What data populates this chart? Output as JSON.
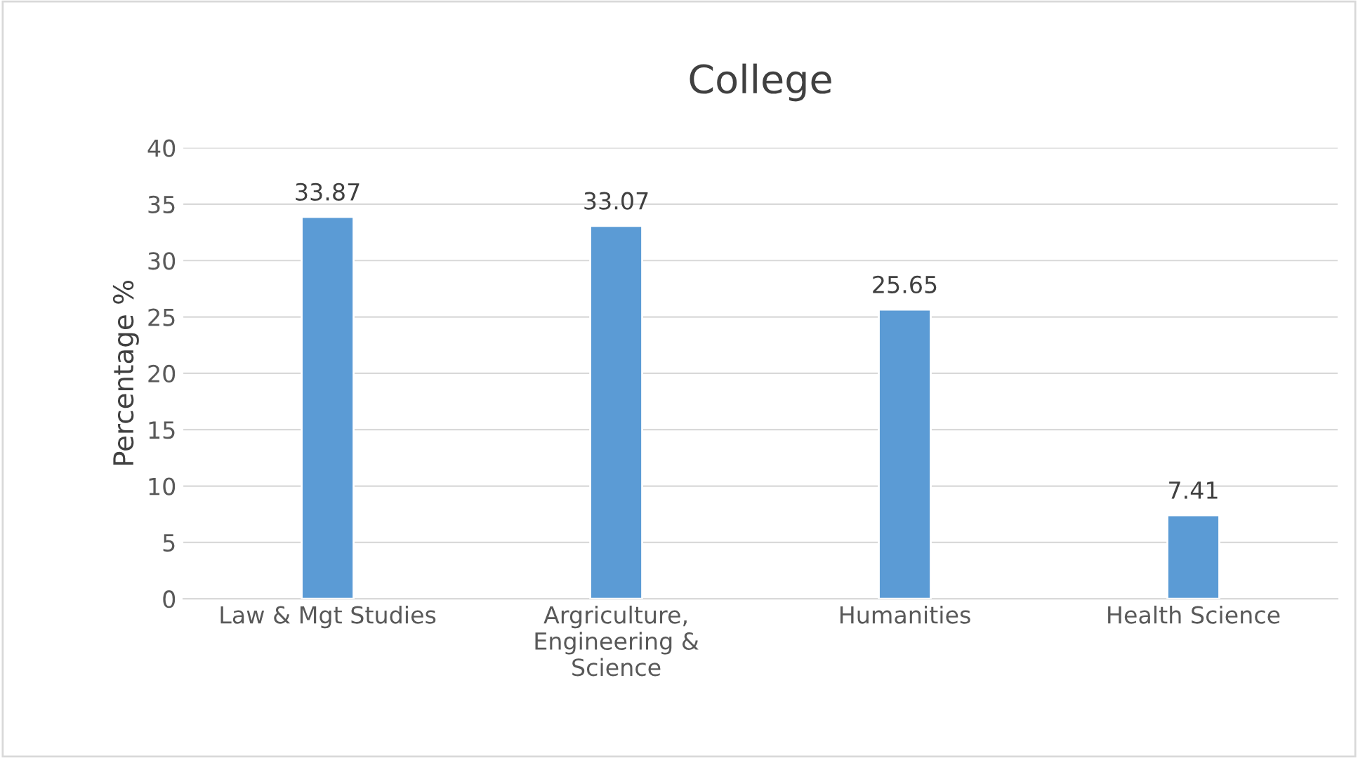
{
  "chart_data": {
    "type": "bar",
    "title": "College",
    "ylabel": "Percentage %",
    "categories": [
      "Law & Mgt Studies",
      "Argriculture,\nEngineering &\nScience",
      "Humanities",
      "Health Science"
    ],
    "values": [
      33.87,
      33.07,
      25.65,
      7.41
    ],
    "color": "#5b9bd5",
    "ylim": [
      0,
      40
    ],
    "yticks": [
      0,
      5,
      10,
      15,
      20,
      25,
      30,
      35,
      40
    ],
    "grid": "y",
    "data_labels": true
  }
}
